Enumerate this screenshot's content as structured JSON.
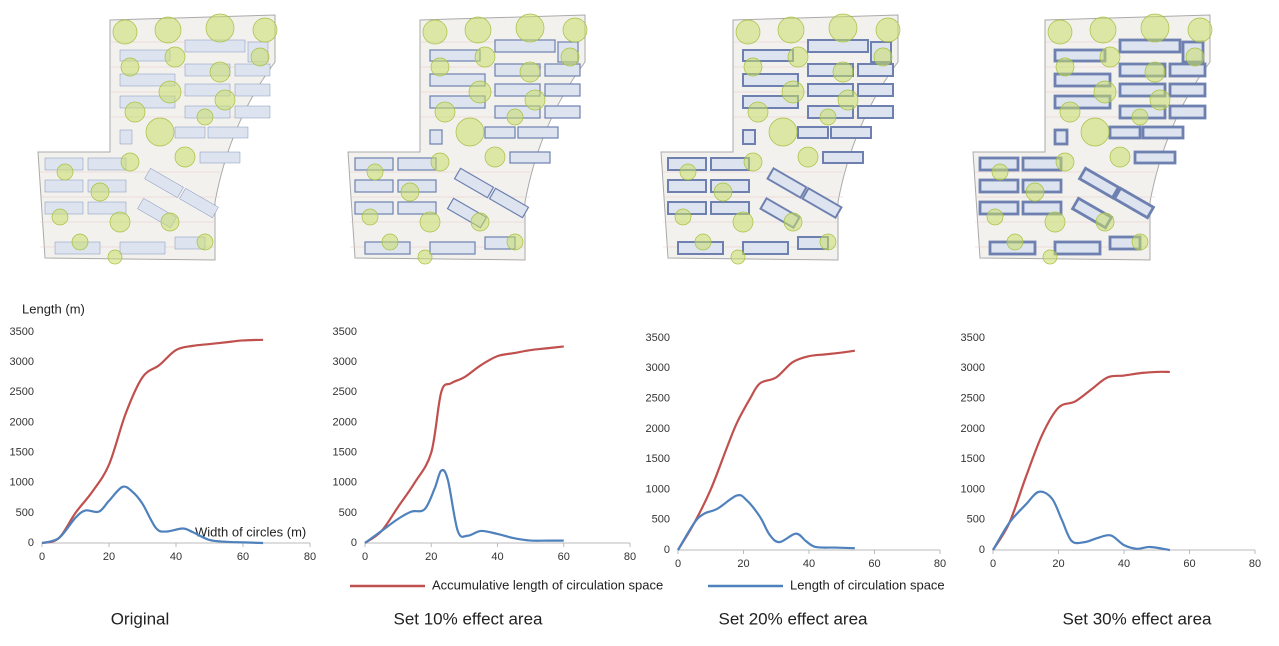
{
  "chart_data": [
    {
      "type": "line",
      "caption": "Original",
      "ylabel": "Length (m)",
      "xlabel": "Width of circles (m)",
      "xlim": [
        0,
        80
      ],
      "xticks": [
        0,
        20,
        40,
        60,
        80
      ],
      "ylim": [
        0,
        3500
      ],
      "yticks": [
        0,
        500,
        1000,
        1500,
        2000,
        2500,
        3000,
        3500
      ],
      "series": [
        {
          "color": "#c0504d",
          "x": [
            0,
            5,
            10,
            15,
            20,
            25,
            30,
            35,
            40,
            45,
            50,
            55,
            60,
            66
          ],
          "values": [
            0,
            80,
            500,
            850,
            1300,
            2150,
            2750,
            2950,
            3200,
            3270,
            3300,
            3330,
            3360,
            3370
          ]
        },
        {
          "color": "#4f81bd",
          "x": [
            0,
            5,
            10,
            13,
            17,
            20,
            24,
            27,
            30,
            34,
            37,
            42,
            45,
            50,
            55,
            60,
            66
          ],
          "values": [
            0,
            80,
            420,
            540,
            520,
            700,
            930,
            850,
            650,
            250,
            190,
            240,
            180,
            50,
            20,
            10,
            0
          ]
        }
      ]
    },
    {
      "type": "line",
      "caption": "Set 10% effect area",
      "xlim": [
        0,
        80
      ],
      "xticks": [
        0,
        20,
        40,
        60,
        80
      ],
      "ylim": [
        0,
        3500
      ],
      "yticks": [
        0,
        500,
        1000,
        1500,
        2000,
        2500,
        3000,
        3500
      ],
      "series": [
        {
          "name": "Accumulative length of circulation space",
          "color": "#c0504d",
          "x": [
            0,
            5,
            10,
            15,
            20,
            23,
            26,
            30,
            35,
            40,
            45,
            50,
            55,
            60
          ],
          "values": [
            0,
            200,
            600,
            1000,
            1500,
            2500,
            2650,
            2750,
            2950,
            3100,
            3150,
            3200,
            3230,
            3260
          ]
        },
        {
          "name": "Length of circulation space",
          "color": "#4f81bd",
          "x": [
            0,
            5,
            10,
            14,
            18,
            21,
            23,
            25,
            28,
            31,
            35,
            40,
            45,
            50,
            55,
            60
          ],
          "values": [
            0,
            200,
            400,
            520,
            560,
            900,
            1200,
            1050,
            200,
            120,
            200,
            150,
            80,
            40,
            40,
            40
          ]
        }
      ]
    },
    {
      "type": "line",
      "caption": "Set 20% effect area",
      "xlim": [
        0,
        80
      ],
      "xticks": [
        0,
        20,
        40,
        60,
        80
      ],
      "ylim": [
        0,
        3500
      ],
      "yticks": [
        0,
        500,
        1000,
        1500,
        2000,
        2500,
        3000,
        3500
      ],
      "series": [
        {
          "color": "#c0504d",
          "x": [
            0,
            5,
            10,
            15,
            18,
            22,
            25,
            30,
            35,
            40,
            45,
            50,
            54
          ],
          "values": [
            0,
            450,
            1000,
            1700,
            2100,
            2500,
            2750,
            2850,
            3100,
            3200,
            3230,
            3260,
            3290
          ]
        },
        {
          "color": "#4f81bd",
          "x": [
            0,
            5,
            8,
            12,
            18,
            21,
            25,
            28,
            31,
            36,
            39,
            42,
            48,
            54
          ],
          "values": [
            0,
            450,
            600,
            680,
            900,
            820,
            550,
            250,
            130,
            270,
            150,
            50,
            40,
            30
          ]
        }
      ]
    },
    {
      "type": "line",
      "caption": "Set 30% effect area",
      "xlim": [
        0,
        80
      ],
      "xticks": [
        0,
        20,
        40,
        60,
        80
      ],
      "ylim": [
        0,
        3500
      ],
      "yticks": [
        0,
        500,
        1000,
        1500,
        2000,
        2500,
        3000,
        3500
      ],
      "series": [
        {
          "color": "#c0504d",
          "x": [
            0,
            5,
            10,
            15,
            20,
            25,
            30,
            35,
            40,
            45,
            50,
            54
          ],
          "values": [
            0,
            450,
            1200,
            1900,
            2350,
            2450,
            2650,
            2850,
            2880,
            2920,
            2940,
            2940
          ]
        },
        {
          "color": "#4f81bd",
          "x": [
            0,
            5,
            10,
            14,
            18,
            21,
            24,
            28,
            32,
            36,
            40,
            44,
            48,
            54
          ],
          "values": [
            0,
            450,
            750,
            960,
            850,
            500,
            150,
            130,
            200,
            240,
            80,
            20,
            50,
            0
          ]
        }
      ]
    }
  ]
}
